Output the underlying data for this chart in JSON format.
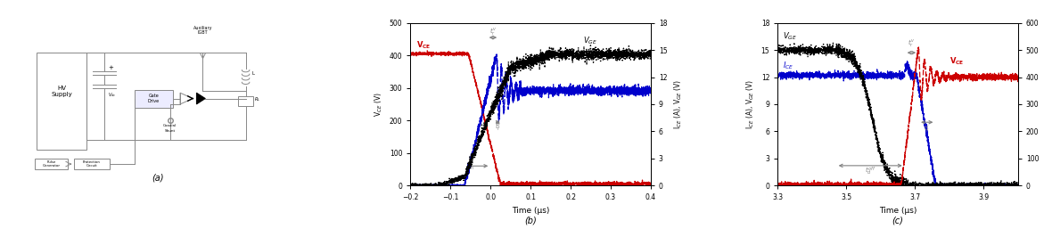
{
  "panel_a_label": "(a)",
  "panel_b_label": "(b)",
  "panel_c_label": "(c)",
  "fig_width": 11.71,
  "fig_height": 2.57,
  "bg_color": "#ffffff",
  "panel_b": {
    "xlim": [
      -0.2,
      0.4
    ],
    "ylim_left": [
      0,
      500
    ],
    "ylim_right": [
      0,
      18
    ],
    "xlabel": "Time (μs)",
    "ylabel_left": "V$_{CE}$ (V)",
    "ylabel_right": "I$_{CE}$ (A), V$_{GE}$ (V)",
    "yticks_left": [
      0,
      100,
      200,
      300,
      400,
      500
    ],
    "yticks_right": [
      0,
      3,
      6,
      9,
      12,
      15,
      18
    ],
    "xticks": [
      -0.2,
      -0.1,
      0.0,
      0.1,
      0.2,
      0.3,
      0.4
    ],
    "vce_color": "#cc0000",
    "ice_color": "#0000cc",
    "vge_color": "#000000"
  },
  "panel_c": {
    "xlim": [
      3.3,
      4.0
    ],
    "ylim_left": [
      0,
      18
    ],
    "ylim_right": [
      0,
      600
    ],
    "xlabel": "Time (μs)",
    "ylabel_left": "I$_{CE}$ (A), V$_{GE}$ (V)",
    "ylabel_right": "V$_{CE}$ (V)",
    "yticks_left": [
      0,
      3,
      6,
      9,
      12,
      15,
      18
    ],
    "yticks_right": [
      0,
      100,
      200,
      300,
      400,
      500,
      600
    ],
    "xticks": [
      3.3,
      3.5,
      3.7,
      3.9
    ],
    "vce_color": "#cc0000",
    "ice_color": "#0000cc",
    "vge_color": "#000000"
  }
}
